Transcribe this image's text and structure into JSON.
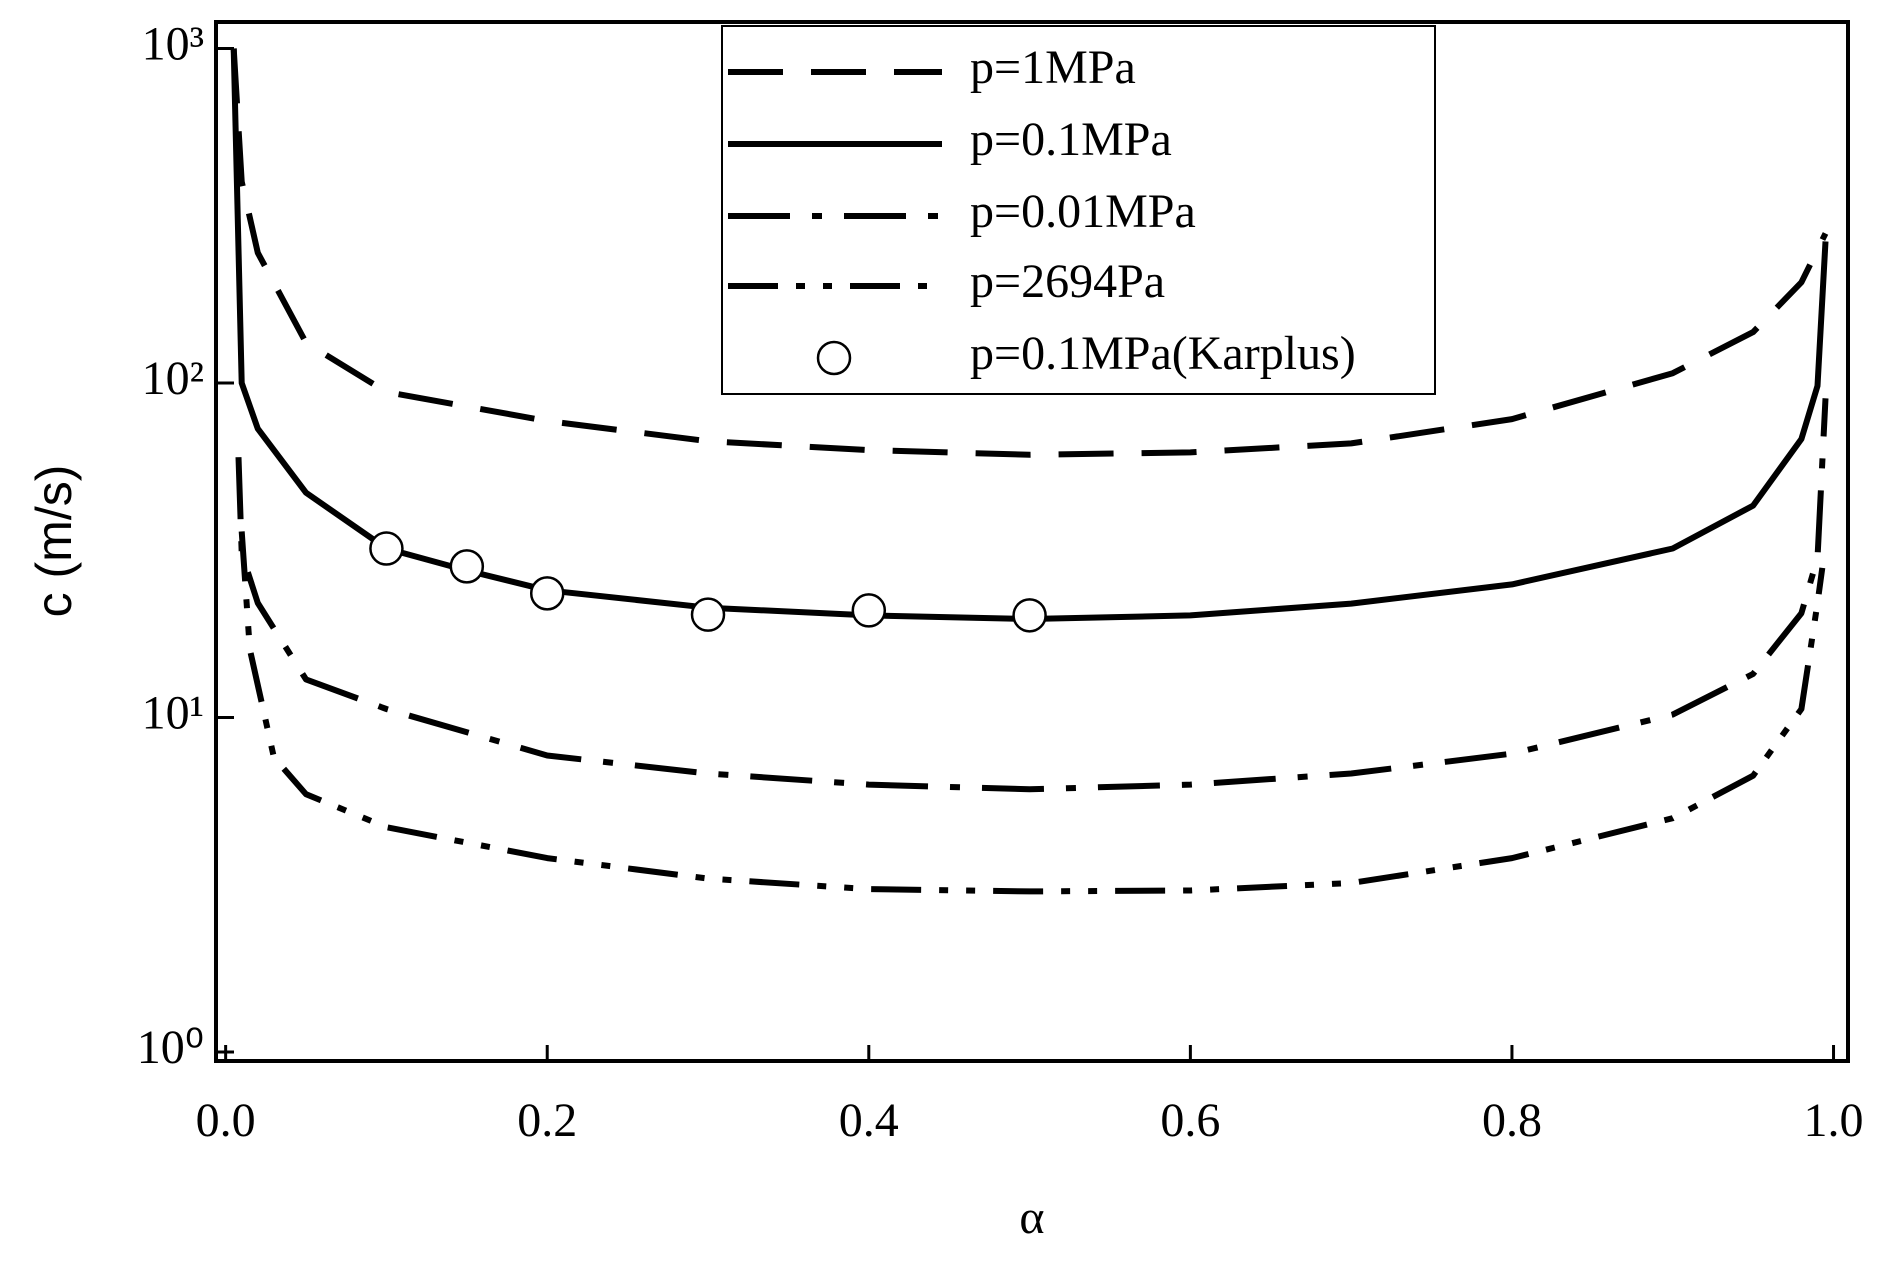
{
  "chart_data": {
    "type": "line",
    "xlabel": "α",
    "ylabel": "c (m/s)",
    "xlim": [
      -0.006,
      1.009
    ],
    "ylim": [
      0.94,
      1200
    ],
    "yscale": "log",
    "xticks": [
      {
        "value": 0,
        "label": "0.0"
      },
      0.2,
      0.4,
      0.6,
      0.8,
      {
        "value": 1,
        "label": "1.0"
      }
    ],
    "yticks": [
      {
        "value": 1,
        "label": "10⁰"
      },
      {
        "value": 10,
        "label": "10¹"
      },
      {
        "value": 100,
        "label": "10²"
      },
      {
        "value": 1000,
        "label": "10³"
      }
    ],
    "legend": "top-center",
    "series": [
      {
        "name": "p=1MPa",
        "color": "#000000",
        "style": "dashed",
        "x": [
          0.005,
          0.01,
          0.02,
          0.05,
          0.1,
          0.2,
          0.3,
          0.4,
          0.5,
          0.6,
          0.7,
          0.8,
          0.9,
          0.95,
          0.98,
          0.995
        ],
        "values": [
          1000,
          400,
          245,
          132,
          94,
          77,
          67,
          63,
          61,
          62,
          66,
          78,
          107,
          142,
          200,
          280
        ]
      },
      {
        "name": "p=0.1MPa",
        "color": "#000000",
        "style": "solid",
        "x": [
          0.005,
          0.01,
          0.02,
          0.05,
          0.1,
          0.15,
          0.2,
          0.3,
          0.4,
          0.5,
          0.6,
          0.7,
          0.8,
          0.9,
          0.95,
          0.98,
          0.99,
          0.995
        ],
        "values": [
          1000,
          100,
          73,
          47,
          32,
          27.5,
          24,
          21.3,
          20.2,
          19.7,
          20.2,
          21.9,
          25,
          32,
          43,
          68,
          98,
          265
        ]
      },
      {
        "name": "p=0.01MPa",
        "color": "#000000",
        "style": "dash-dot",
        "x": [
          0.008,
          0.01,
          0.02,
          0.05,
          0.1,
          0.2,
          0.3,
          0.4,
          0.5,
          0.6,
          0.7,
          0.8,
          0.9,
          0.95,
          0.98,
          0.99,
          0.995
        ],
        "values": [
          60,
          31,
          22,
          13,
          10.6,
          7.7,
          6.8,
          6.3,
          6.1,
          6.3,
          6.8,
          7.8,
          10.2,
          13.5,
          20.5,
          30,
          90
        ]
      },
      {
        "name": "p=2694Pa",
        "color": "#000000",
        "style": "dash-dot-dot",
        "x": [
          0.01,
          0.015,
          0.03,
          0.05,
          0.1,
          0.2,
          0.3,
          0.4,
          0.5,
          0.6,
          0.7,
          0.8,
          0.9,
          0.95,
          0.98,
          0.99,
          0.993
        ],
        "values": [
          36,
          16,
          7.6,
          5.9,
          4.7,
          3.8,
          3.3,
          3.07,
          3.02,
          3.04,
          3.2,
          3.8,
          5.0,
          6.7,
          10.6,
          22,
          28
        ]
      },
      {
        "name": "p=0.1MPa(Karplus)",
        "color": "#000000",
        "style": "markers",
        "x": [
          0.1,
          0.15,
          0.2,
          0.3,
          0.4,
          0.5
        ],
        "values": [
          32,
          28.3,
          23.5,
          20.3,
          20.9,
          20.2
        ]
      }
    ]
  }
}
